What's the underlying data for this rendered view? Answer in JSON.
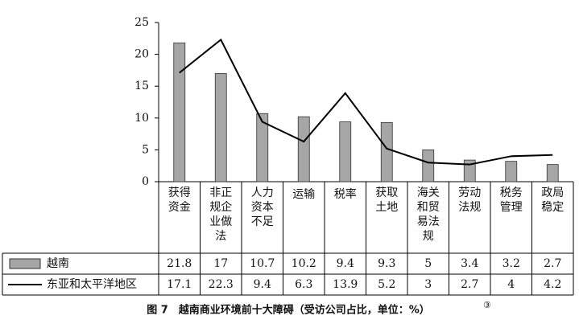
{
  "chart_data": {
    "type": "bar",
    "title": "图 7　越南商业环境前十大障碍（受访公司占比，单位：%）",
    "footnote_mark": "③",
    "categories": [
      "获得\n资金",
      "非正\n规企\n业做\n法",
      "人力\n资本\n不足",
      "运输",
      "税率",
      "获取\n土地",
      "海关\n和贸\n易法\n规",
      "劳动\n法规",
      "税务\n管理",
      "政局\n稳定"
    ],
    "series": [
      {
        "name": "越南",
        "type": "bar",
        "color": "#a6a6a6",
        "values": [
          21.8,
          17,
          10.7,
          10.2,
          9.4,
          9.3,
          5,
          3.4,
          3.2,
          2.7
        ]
      },
      {
        "name": "东亚和太平洋地区",
        "type": "line",
        "color": "#000000",
        "values": [
          17.1,
          22.3,
          9.4,
          6.3,
          13.9,
          5.2,
          3,
          2.7,
          4,
          4.2
        ]
      }
    ],
    "ylim": [
      0,
      25
    ],
    "yticks": [
      0,
      5,
      10,
      15,
      20,
      25
    ]
  }
}
